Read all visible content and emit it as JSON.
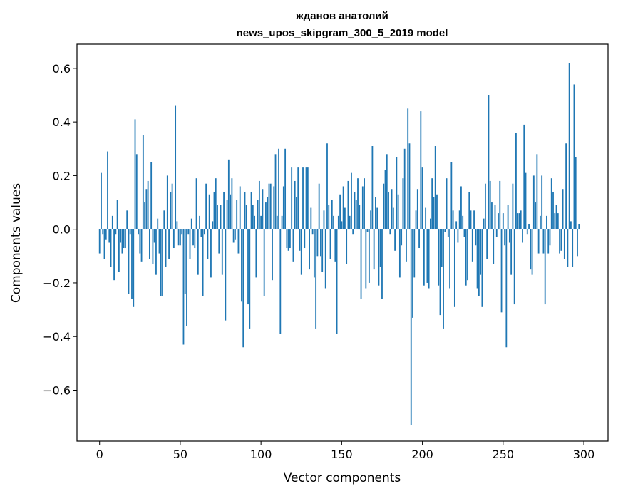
{
  "chart_data": {
    "type": "bar",
    "title": "жданов анатолий",
    "subtitle": "news_upos_skipgram_300_5_2019 model",
    "xlabel": "Vector components",
    "ylabel": "Components values",
    "xlim": [
      -14,
      315
    ],
    "ylim": [
      -0.79,
      0.69
    ],
    "x_ticks": [
      0,
      50,
      100,
      150,
      200,
      250,
      300
    ],
    "x_tick_labels": [
      "0",
      "50",
      "100",
      "150",
      "200",
      "250",
      "300"
    ],
    "y_ticks": [
      -0.6,
      -0.4,
      -0.2,
      0.0,
      0.2,
      0.4,
      0.6
    ],
    "y_tick_labels": [
      "−0.6",
      "−0.4",
      "−0.2",
      "0.0",
      "0.2",
      "0.4",
      "0.6"
    ],
    "grid": false,
    "bar_color": "#1f77b4",
    "values": [
      -0.09,
      0.21,
      -0.02,
      -0.11,
      -0.04,
      0.29,
      -0.05,
      -0.14,
      0.05,
      -0.19,
      -0.02,
      0.11,
      -0.16,
      -0.05,
      -0.09,
      -0.07,
      -0.07,
      0.07,
      -0.24,
      -0.02,
      -0.26,
      -0.29,
      0.41,
      0.28,
      -0.02,
      -0.09,
      -0.12,
      0.35,
      0.1,
      0.15,
      0.18,
      -0.11,
      0.25,
      -0.13,
      -0.05,
      -0.17,
      0.04,
      -0.09,
      -0.25,
      -0.25,
      0.07,
      -0.14,
      0.2,
      -0.11,
      0.14,
      0.17,
      -0.07,
      0.46,
      0.03,
      -0.06,
      -0.06,
      -0.02,
      -0.43,
      -0.24,
      -0.36,
      -0.02,
      -0.11,
      0.04,
      -0.06,
      -0.07,
      0.19,
      -0.17,
      0.05,
      -0.03,
      -0.25,
      -0.02,
      0.17,
      -0.11,
      0.13,
      -0.18,
      0.03,
      0.14,
      0.19,
      0.09,
      -0.09,
      0.09,
      -0.17,
      0.14,
      -0.34,
      0.11,
      0.26,
      0.13,
      0.19,
      -0.05,
      -0.04,
      0.11,
      -0.09,
      0.16,
      -0.27,
      -0.44,
      0.14,
      0.09,
      -0.28,
      -0.37,
      0.14,
      0.09,
      0.05,
      -0.18,
      0.11,
      0.18,
      0.05,
      0.15,
      -0.25,
      0.1,
      0.12,
      0.17,
      0.17,
      -0.19,
      0.16,
      0.28,
      0.05,
      0.3,
      -0.39,
      0.05,
      0.16,
      0.3,
      -0.07,
      -0.08,
      -0.07,
      0.23,
      -0.12,
      0.18,
      0.12,
      0.23,
      -0.08,
      -0.17,
      0.23,
      -0.07,
      0.23,
      0.23,
      -0.15,
      0.08,
      -0.02,
      -0.18,
      -0.37,
      -0.1,
      0.17,
      -0.1,
      -0.16,
      0.07,
      -0.22,
      0.32,
      0.09,
      -0.11,
      0.11,
      0.05,
      -0.12,
      -0.39,
      0.05,
      0.13,
      0.03,
      0.16,
      0.08,
      -0.13,
      0.18,
      0.05,
      0.21,
      -0.02,
      0.14,
      0.11,
      0.19,
      0.09,
      -0.26,
      0.16,
      0.19,
      -0.22,
      -0.01,
      -0.2,
      0.07,
      0.31,
      -0.15,
      0.12,
      0.08,
      -0.21,
      -0.14,
      -0.26,
      0.17,
      0.22,
      0.28,
      0.14,
      -0.02,
      0.15,
      0.08,
      -0.08,
      0.27,
      0.13,
      -0.18,
      -0.06,
      0.19,
      0.3,
      -0.12,
      0.45,
      0.32,
      -0.73,
      -0.33,
      -0.18,
      0.07,
      0.15,
      -0.07,
      0.44,
      0.23,
      -0.21,
      0.08,
      -0.2,
      -0.22,
      0.04,
      0.19,
      0.12,
      0.31,
      0.13,
      -0.21,
      -0.32,
      -0.14,
      -0.37,
      -0.01,
      0.19,
      -0.03,
      -0.22,
      0.25,
      0.07,
      -0.29,
      0.03,
      -0.05,
      0.07,
      0.16,
      0.05,
      -0.03,
      -0.21,
      -0.19,
      0.14,
      0.07,
      -0.12,
      0.07,
      -0.06,
      -0.22,
      -0.25,
      -0.17,
      -0.29,
      0.04,
      0.17,
      -0.11,
      0.5,
      0.18,
      0.1,
      -0.13,
      0.09,
      -0.03,
      0.06,
      0.18,
      -0.31,
      0.06,
      -0.06,
      -0.44,
      0.09,
      -0.05,
      -0.17,
      0.17,
      -0.28,
      0.36,
      0.06,
      0.06,
      0.07,
      -0.05,
      0.39,
      0.21,
      -0.02,
      0.02,
      -0.15,
      -0.17,
      0.2,
      0.1,
      0.28,
      -0.09,
      0.05,
      0.2,
      -0.09,
      -0.28,
      0.05,
      -0.09,
      -0.06,
      0.19,
      0.14,
      0.06,
      0.09,
      0.06,
      -0.09,
      -0.08,
      0.15,
      -0.11,
      0.32,
      -0.14,
      0.62,
      0.03,
      -0.14,
      0.54,
      0.27,
      -0.1,
      0.02
    ]
  }
}
